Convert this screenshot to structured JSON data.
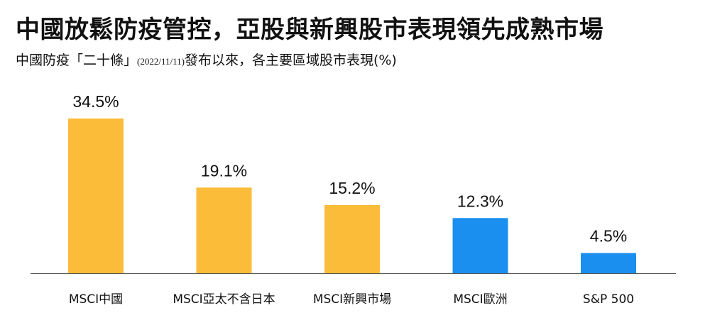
{
  "header": {
    "title": "中國放鬆防疫管控，亞股與新興股市表現領先成熟市場",
    "subtitle_main": "中國防疫「二十條」",
    "subtitle_date": "(2022/11/11)",
    "subtitle_rest": "發布以來，各主要區域股市表現(%)"
  },
  "colors": {
    "asia": "#FBBC3A",
    "developed": "#1A8FEF",
    "baseline": "#555555"
  },
  "chart_data": {
    "type": "bar",
    "title": "中國放鬆防疫管控，亞股與新興股市表現領先成熟市場",
    "subtitle": "中國防疫「二十條」(2022/11/11)發布以來，各主要區域股市表現(%)",
    "categories": [
      "MSCI中國",
      "MSCI亞太不含日本",
      "MSCI新興市場",
      "MSCI歐洲",
      "S&P 500"
    ],
    "values": [
      34.5,
      19.1,
      15.2,
      12.3,
      4.5
    ],
    "value_labels": [
      "34.5%",
      "19.1%",
      "15.2%",
      "12.3%",
      "4.5%"
    ],
    "bar_colors": [
      "#FBBC3A",
      "#FBBC3A",
      "#FBBC3A",
      "#1A8FEF",
      "#1A8FEF"
    ],
    "ylim": [
      0,
      34.5
    ],
    "grid": false,
    "legend": "none"
  }
}
